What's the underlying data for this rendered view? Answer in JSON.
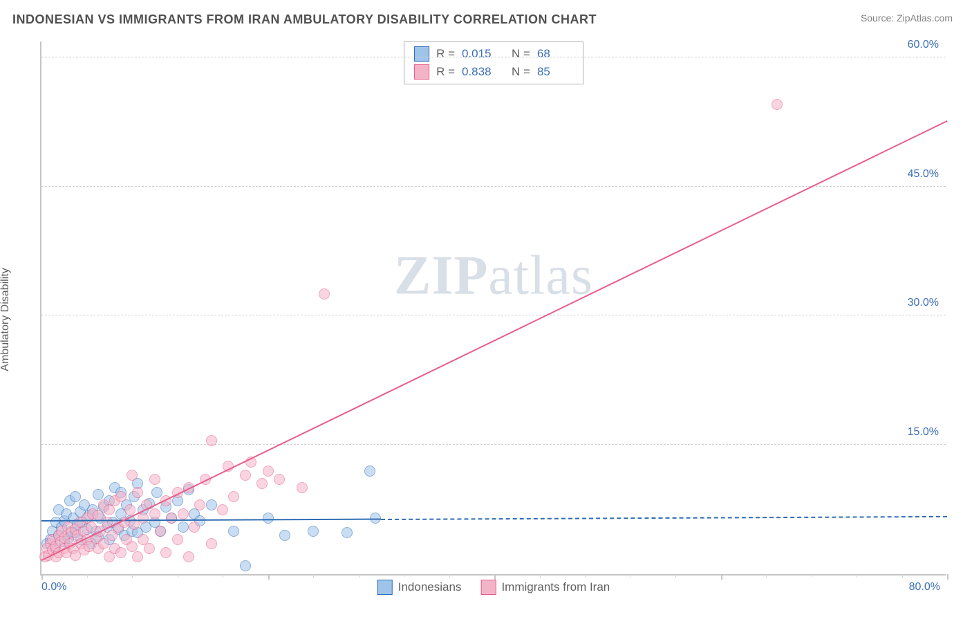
{
  "header": {
    "title": "INDONESIAN VS IMMIGRANTS FROM IRAN AMBULATORY DISABILITY CORRELATION CHART",
    "source_prefix": "Source: ",
    "source": "ZipAtlas.com"
  },
  "watermark": {
    "bold": "ZIP",
    "rest": "atlas"
  },
  "chart": {
    "type": "scatter",
    "ylabel": "Ambulatory Disability",
    "background_color": "#ffffff",
    "grid_color": "#d0d0d0",
    "axis_color": "#c5c5c5",
    "label_color": "#3b6fb6",
    "xlim": [
      0,
      80
    ],
    "ylim": [
      0,
      62
    ],
    "x_ticks_major": [
      0,
      20,
      40,
      60,
      80
    ],
    "x_ticks_minor": [
      4,
      8,
      12,
      16,
      24,
      28,
      32,
      36,
      44,
      48,
      52,
      56,
      64,
      68,
      72,
      76
    ],
    "y_ticks": [
      15,
      30,
      45,
      60
    ],
    "x_tick_labels": {
      "left": "0.0%",
      "right": "80.0%"
    },
    "y_tick_labels": [
      "15.0%",
      "30.0%",
      "45.0%",
      "60.0%"
    ],
    "marker_radius": 8,
    "marker_opacity": 0.55,
    "series": [
      {
        "name": "Indonesians",
        "fill_color": "#9fc4ea",
        "stroke_color": "#2f6db3",
        "line_color": "#2f6db3",
        "regression": {
          "x1": 0,
          "y1": 6.1,
          "x2": 30,
          "y2": 6.3,
          "dash_to_x": 80
        },
        "stats": {
          "R": "0.015",
          "N": "68"
        },
        "points": [
          [
            0.5,
            3.5
          ],
          [
            0.8,
            4.0
          ],
          [
            1.0,
            5.0
          ],
          [
            1.2,
            3.0
          ],
          [
            1.3,
            6.0
          ],
          [
            1.5,
            4.5
          ],
          [
            1.5,
            7.5
          ],
          [
            1.8,
            5.5
          ],
          [
            2.0,
            6.2
          ],
          [
            2.0,
            3.8
          ],
          [
            2.2,
            7.0
          ],
          [
            2.4,
            4.2
          ],
          [
            2.5,
            8.5
          ],
          [
            2.6,
            5.0
          ],
          [
            2.8,
            6.5
          ],
          [
            3.0,
            4.8
          ],
          [
            3.0,
            9.0
          ],
          [
            3.2,
            5.8
          ],
          [
            3.4,
            7.2
          ],
          [
            3.5,
            4.0
          ],
          [
            3.6,
            6.0
          ],
          [
            3.8,
            8.0
          ],
          [
            4.0,
            5.2
          ],
          [
            4.2,
            6.8
          ],
          [
            4.4,
            3.5
          ],
          [
            4.5,
            7.5
          ],
          [
            4.8,
            5.0
          ],
          [
            5.0,
            9.2
          ],
          [
            5.0,
            4.3
          ],
          [
            5.2,
            6.5
          ],
          [
            5.5,
            7.8
          ],
          [
            5.8,
            5.5
          ],
          [
            6.0,
            8.5
          ],
          [
            6.0,
            4.0
          ],
          [
            6.3,
            6.0
          ],
          [
            6.5,
            10.0
          ],
          [
            6.8,
            5.2
          ],
          [
            7.0,
            7.0
          ],
          [
            7.0,
            9.5
          ],
          [
            7.3,
            4.5
          ],
          [
            7.5,
            8.0
          ],
          [
            7.8,
            6.2
          ],
          [
            8.0,
            5.0
          ],
          [
            8.2,
            9.0
          ],
          [
            8.5,
            10.5
          ],
          [
            8.5,
            4.8
          ],
          [
            9.0,
            7.5
          ],
          [
            9.2,
            5.5
          ],
          [
            9.5,
            8.2
          ],
          [
            10.0,
            6.0
          ],
          [
            10.2,
            9.5
          ],
          [
            10.5,
            5.0
          ],
          [
            11.0,
            7.8
          ],
          [
            11.5,
            6.5
          ],
          [
            12.0,
            8.5
          ],
          [
            12.5,
            5.5
          ],
          [
            13.0,
            9.8
          ],
          [
            13.5,
            7.0
          ],
          [
            14.0,
            6.2
          ],
          [
            15.0,
            8.0
          ],
          [
            17.0,
            5.0
          ],
          [
            18.0,
            1.0
          ],
          [
            20.0,
            6.5
          ],
          [
            21.5,
            4.5
          ],
          [
            24.0,
            5.0
          ],
          [
            27.0,
            4.8
          ],
          [
            29.0,
            12.0
          ],
          [
            29.5,
            6.5
          ]
        ]
      },
      {
        "name": "Immigrants from Iran",
        "fill_color": "#f4b4c8",
        "stroke_color": "#e85d8a",
        "line_color": "#e85d8a",
        "regression": {
          "x1": 0,
          "y1": 1.5,
          "x2": 80,
          "y2": 52.5
        },
        "stats": {
          "R": "0.838",
          "N": "85"
        },
        "points": [
          [
            0.3,
            2.0
          ],
          [
            0.5,
            3.0
          ],
          [
            0.6,
            2.2
          ],
          [
            0.8,
            3.5
          ],
          [
            1.0,
            2.8
          ],
          [
            1.0,
            4.0
          ],
          [
            1.2,
            3.2
          ],
          [
            1.3,
            2.0
          ],
          [
            1.5,
            4.5
          ],
          [
            1.5,
            2.5
          ],
          [
            1.7,
            3.8
          ],
          [
            1.8,
            5.0
          ],
          [
            2.0,
            3.0
          ],
          [
            2.0,
            4.2
          ],
          [
            2.2,
            2.5
          ],
          [
            2.3,
            5.5
          ],
          [
            2.5,
            3.5
          ],
          [
            2.6,
            4.8
          ],
          [
            2.8,
            3.0
          ],
          [
            3.0,
            5.2
          ],
          [
            3.0,
            2.2
          ],
          [
            3.2,
            4.5
          ],
          [
            3.4,
            6.0
          ],
          [
            3.5,
            3.5
          ],
          [
            3.7,
            5.0
          ],
          [
            3.8,
            2.8
          ],
          [
            4.0,
            6.5
          ],
          [
            4.0,
            4.0
          ],
          [
            4.2,
            3.2
          ],
          [
            4.4,
            5.5
          ],
          [
            4.5,
            7.0
          ],
          [
            4.8,
            4.2
          ],
          [
            5.0,
            3.0
          ],
          [
            5.0,
            6.8
          ],
          [
            5.2,
            5.0
          ],
          [
            5.5,
            8.0
          ],
          [
            5.5,
            3.5
          ],
          [
            5.8,
            6.0
          ],
          [
            6.0,
            2.0
          ],
          [
            6.0,
            7.5
          ],
          [
            6.2,
            4.5
          ],
          [
            6.5,
            3.0
          ],
          [
            6.5,
            8.5
          ],
          [
            6.8,
            5.5
          ],
          [
            7.0,
            2.5
          ],
          [
            7.0,
            9.0
          ],
          [
            7.3,
            6.0
          ],
          [
            7.5,
            4.0
          ],
          [
            7.8,
            7.5
          ],
          [
            8.0,
            3.2
          ],
          [
            8.0,
            11.5
          ],
          [
            8.2,
            5.8
          ],
          [
            8.5,
            2.0
          ],
          [
            8.5,
            9.5
          ],
          [
            9.0,
            6.5
          ],
          [
            9.0,
            4.0
          ],
          [
            9.3,
            8.0
          ],
          [
            9.5,
            3.0
          ],
          [
            10.0,
            7.0
          ],
          [
            10.0,
            11.0
          ],
          [
            10.5,
            5.0
          ],
          [
            11.0,
            8.5
          ],
          [
            11.0,
            2.5
          ],
          [
            11.5,
            6.5
          ],
          [
            12.0,
            9.5
          ],
          [
            12.0,
            4.0
          ],
          [
            12.5,
            7.0
          ],
          [
            13.0,
            2.0
          ],
          [
            13.0,
            10.0
          ],
          [
            13.5,
            5.5
          ],
          [
            14.0,
            8.0
          ],
          [
            14.5,
            11.0
          ],
          [
            15.0,
            3.5
          ],
          [
            15.0,
            15.5
          ],
          [
            16.0,
            7.5
          ],
          [
            16.5,
            12.5
          ],
          [
            17.0,
            9.0
          ],
          [
            18.0,
            11.5
          ],
          [
            18.5,
            13.0
          ],
          [
            19.5,
            10.5
          ],
          [
            20.0,
            12.0
          ],
          [
            21.0,
            11.0
          ],
          [
            23.0,
            10.0
          ],
          [
            25.0,
            32.5
          ],
          [
            65.0,
            54.5
          ]
        ]
      }
    ]
  },
  "legend_stats": {
    "R_label": "R =",
    "N_label": "N ="
  }
}
